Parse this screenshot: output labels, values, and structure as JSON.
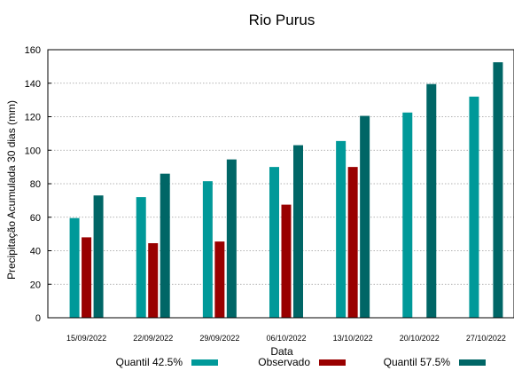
{
  "chart_data": {
    "type": "bar",
    "title": "Rio Purus",
    "xlabel": "Data",
    "ylabel": "Precipitação Acumulada 30 dias (mm)",
    "ylim": [
      0,
      160
    ],
    "yticks": [
      0,
      20,
      40,
      60,
      80,
      100,
      120,
      140,
      160
    ],
    "grid": true,
    "legend_position": "bottom",
    "categories": [
      "15/09/2022",
      "22/09/2022",
      "29/09/2022",
      "06/10/2022",
      "13/10/2022",
      "20/10/2022",
      "27/10/2022"
    ],
    "series": [
      {
        "name": "Quantil 42.5%",
        "color": "#009999",
        "values": [
          59.5,
          72,
          81.5,
          90,
          105.5,
          122.5,
          132
        ]
      },
      {
        "name": "Observado",
        "color": "#990000",
        "values": [
          48,
          44.5,
          45.5,
          67.5,
          90,
          null,
          null
        ]
      },
      {
        "name": "Quantil 57.5%",
        "color": "#006666",
        "values": [
          73,
          86,
          94.5,
          103,
          120.5,
          139.5,
          152.5
        ]
      }
    ]
  }
}
